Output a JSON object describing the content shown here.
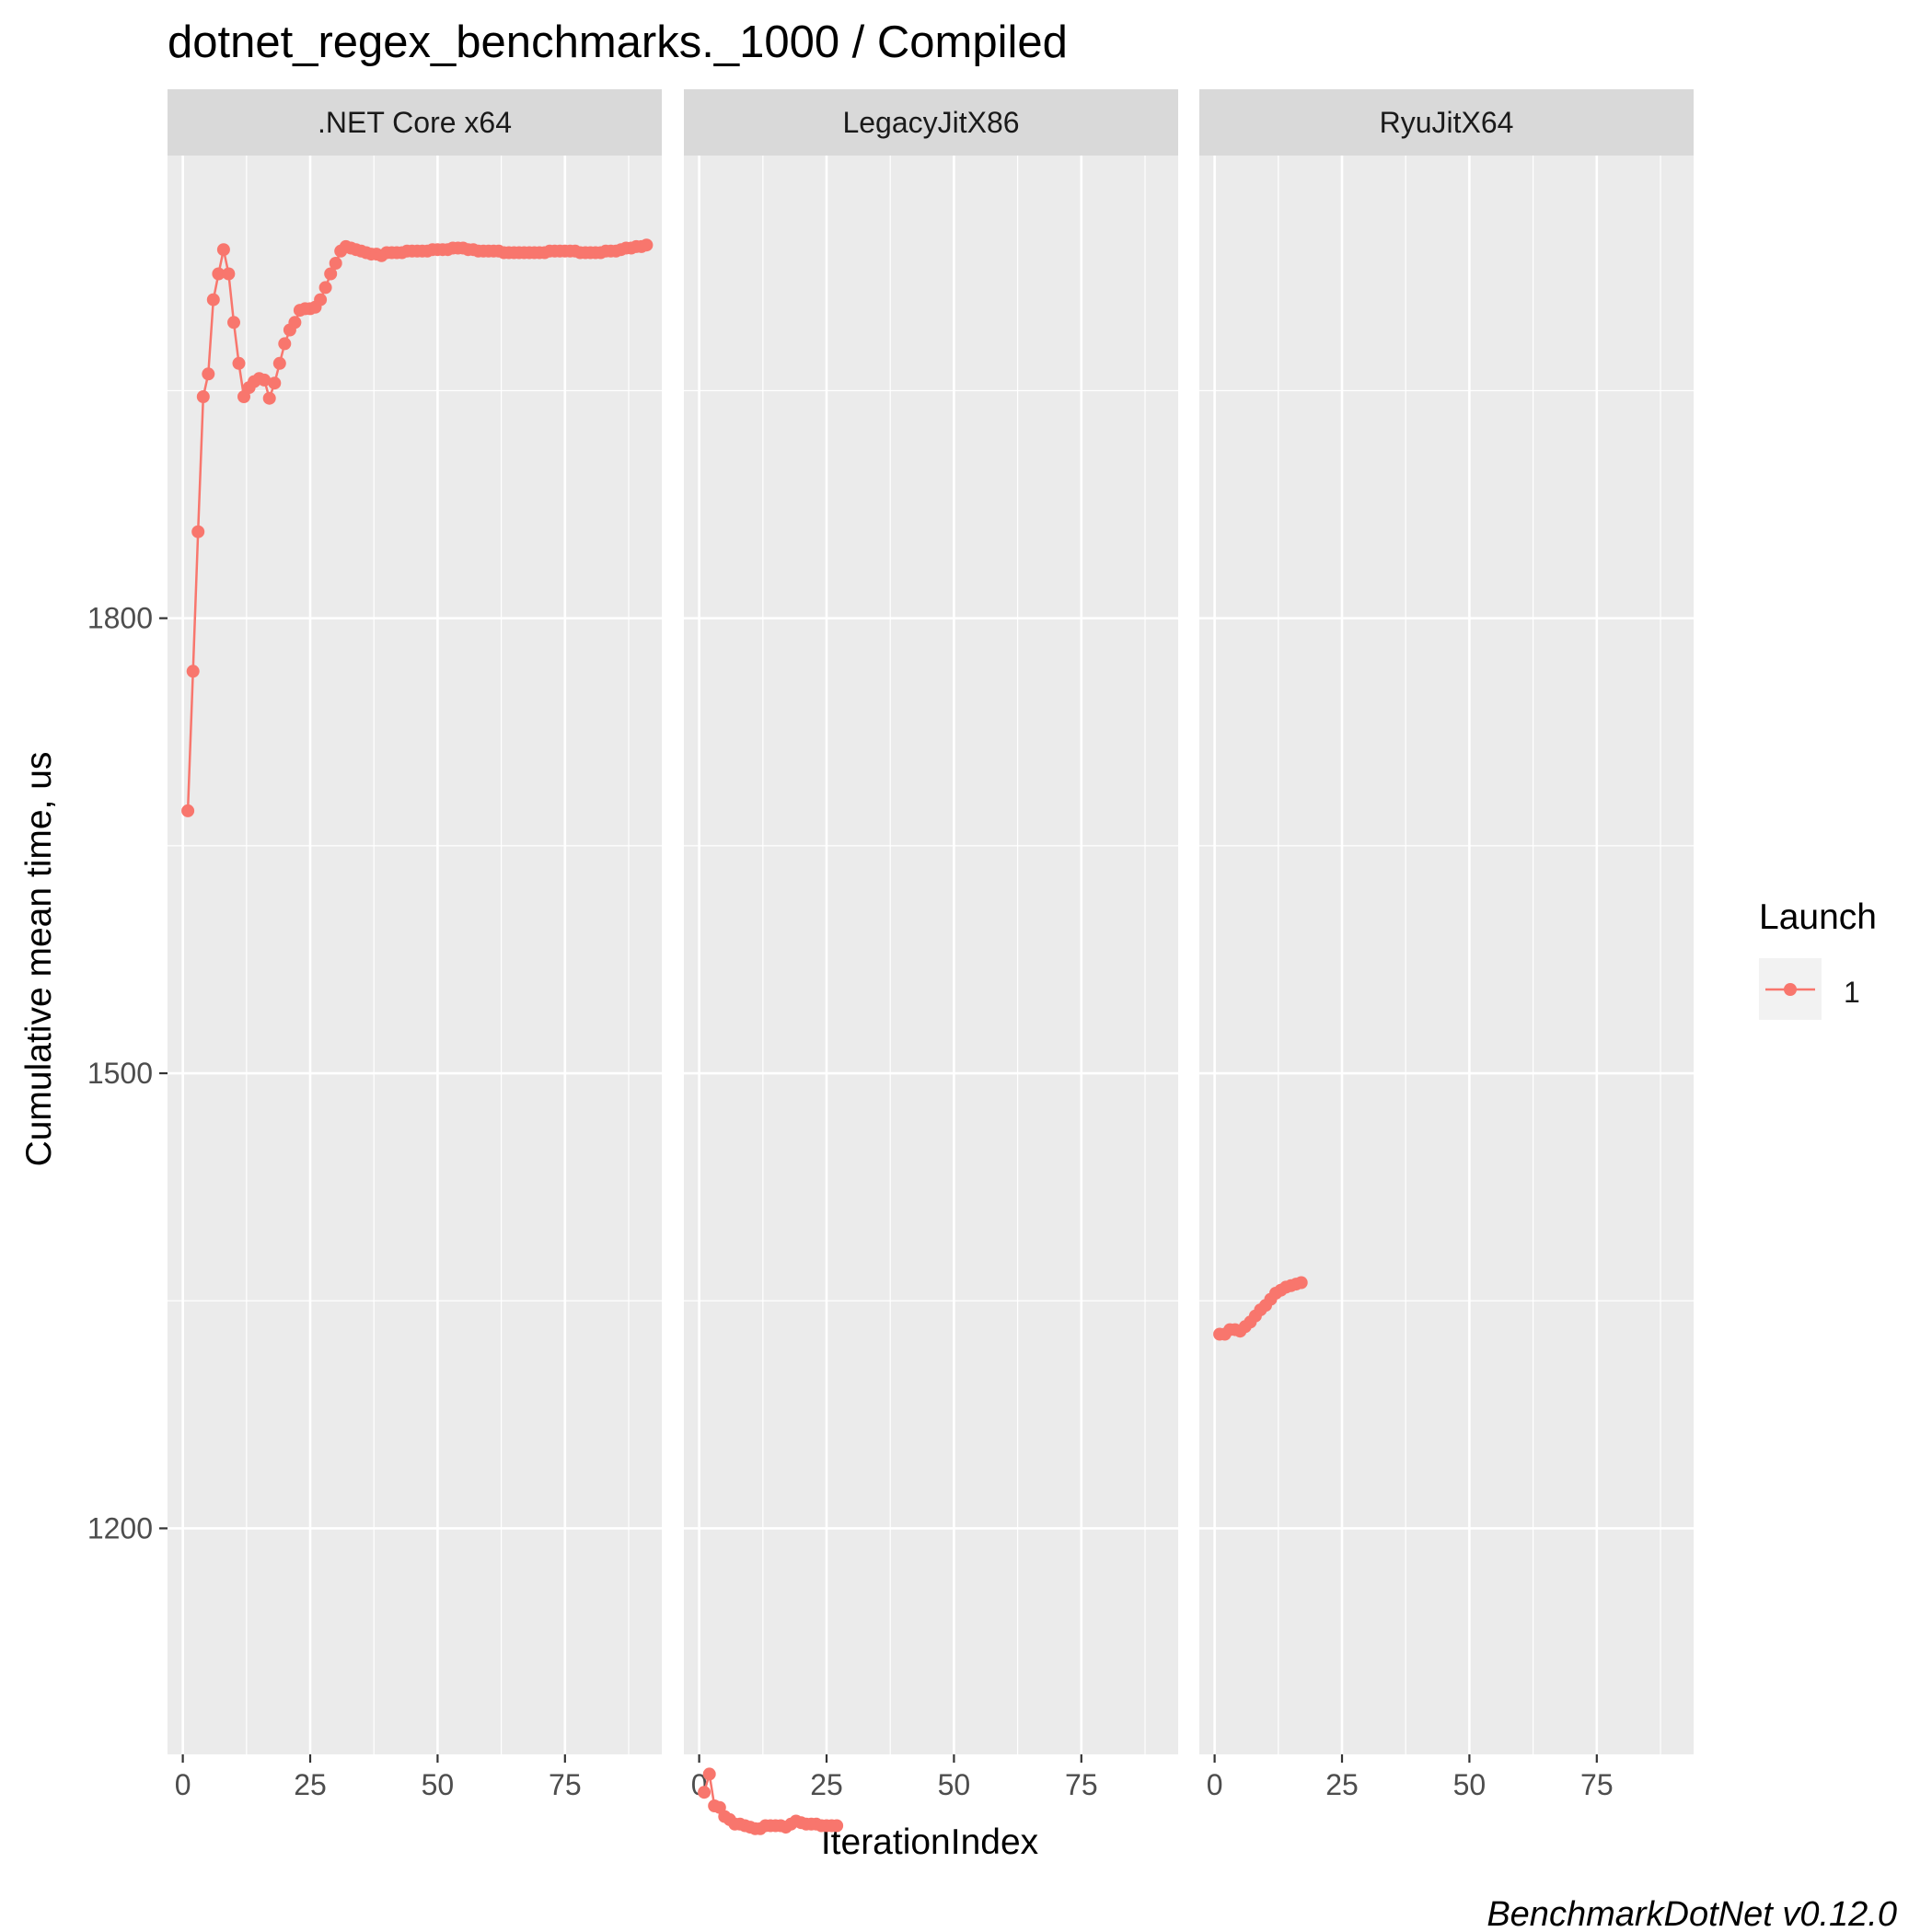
{
  "chart_data": {
    "type": "line",
    "title": "dotnet_regex_benchmarks._1000 / Compiled",
    "xlabel": "IterationIndex",
    "ylabel": "Cumulative mean time, us",
    "caption": "BenchmarkDotNet v0.12.0",
    "legend": {
      "title": "Launch",
      "entries": [
        "1"
      ],
      "position": "right"
    },
    "series_color": "#F8766D",
    "xlim": [
      -3,
      94
    ],
    "ylim": [
      1051,
      2105
    ],
    "xticks": [
      0,
      25,
      50,
      75
    ],
    "xtick_labels": [
      "0",
      "25",
      "50",
      "75"
    ],
    "yticks": [
      1200,
      1500,
      1800
    ],
    "ytick_labels": [
      "1200",
      "1500",
      "1800"
    ],
    "yminor": [
      1050,
      1350,
      1650,
      1950
    ],
    "xminor": [
      12.5,
      37.5,
      62.5,
      87.5
    ],
    "grid": true,
    "panels": [
      {
        "name": ".NET Core x64",
        "x": [
          1,
          2,
          3,
          4,
          5,
          6,
          7,
          8,
          9,
          10,
          11,
          12,
          13,
          14,
          15,
          16,
          17,
          18,
          19,
          20,
          21,
          22,
          23,
          24,
          25,
          26,
          27,
          28,
          29,
          30,
          31,
          32,
          33,
          34,
          35,
          36,
          37,
          38,
          39,
          40,
          41,
          42,
          43,
          44,
          45,
          46,
          47,
          48,
          49,
          50,
          51,
          52,
          53,
          54,
          55,
          56,
          57,
          58,
          59,
          60,
          61,
          62,
          63,
          64,
          65,
          66,
          67,
          68,
          69,
          70,
          71,
          72,
          73,
          74,
          75,
          76,
          77,
          78,
          79,
          80,
          81,
          82,
          83,
          84,
          85,
          86,
          87,
          88,
          89,
          90,
          91
        ],
        "y": [
          1673,
          1765,
          1857,
          1946,
          1961,
          2010,
          2027,
          2043,
          2027,
          1995,
          1968,
          1946,
          1952,
          1956,
          1958,
          1957,
          1945,
          1955,
          1968,
          1981,
          1990,
          1995,
          2003,
          2004,
          2004,
          2005,
          2010,
          2018,
          2027,
          2034,
          2042,
          2045,
          2044,
          2043,
          2042,
          2041,
          2040,
          2040,
          2039,
          2041,
          2041,
          2041,
          2041,
          2042,
          2042,
          2042,
          2042,
          2042,
          2043,
          2043,
          2043,
          2043,
          2044,
          2044,
          2044,
          2043,
          2043,
          2042,
          2042,
          2042,
          2042,
          2042,
          2041,
          2041,
          2041,
          2041,
          2041,
          2041,
          2041,
          2041,
          2041,
          2042,
          2042,
          2042,
          2042,
          2042,
          2042,
          2041,
          2041,
          2041,
          2041,
          2041,
          2042,
          2042,
          2042,
          2043,
          2044,
          2044,
          2045,
          2045,
          2046
        ]
      },
      {
        "name": "LegacyJitX86",
        "x": [
          1,
          2,
          3,
          4,
          5,
          6,
          7,
          8,
          9,
          10,
          11,
          12,
          13,
          14,
          15,
          16,
          17,
          18,
          19,
          20,
          21,
          22,
          23,
          24,
          25,
          26,
          27
        ],
        "y": [
          1026,
          1038,
          1017,
          1016,
          1010,
          1008,
          1005,
          1005,
          1004,
          1003,
          1002,
          1002,
          1004,
          1004,
          1004,
          1004,
          1003,
          1005,
          1007,
          1006,
          1005,
          1005,
          1005,
          1004,
          1004,
          1004,
          1004
        ]
      },
      {
        "name": "RyuJitX64",
        "x": [
          1,
          2,
          3,
          4,
          5,
          6,
          7,
          8,
          9,
          10,
          11,
          12,
          13,
          14,
          15,
          16,
          17
        ],
        "y": [
          1328,
          1328,
          1331,
          1331,
          1330,
          1333,
          1336,
          1340,
          1344,
          1347,
          1351,
          1355,
          1357,
          1359,
          1360,
          1361,
          1362
        ]
      }
    ]
  }
}
